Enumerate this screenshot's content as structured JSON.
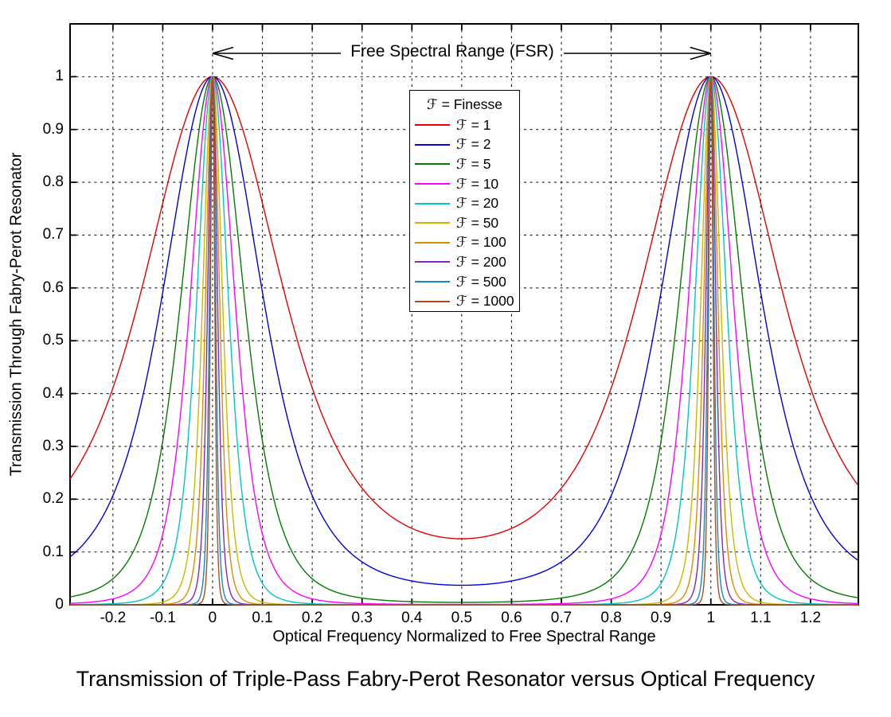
{
  "figure": {
    "title": "Transmission of Triple-Pass Fabry-Perot Resonator versus Optical Frequency"
  },
  "chart_data": {
    "type": "line",
    "title": "Transmission of Triple-Pass Fabry-Perot Resonator versus Optical Frequency",
    "xlabel": "Optical Frequency Normalized to Free Spectral Range",
    "ylabel": "Transmission Through Fabry-Perot Resonator",
    "xlim": [
      -0.286,
      1.296
    ],
    "ylim": [
      0,
      1.1
    ],
    "xticks": [
      -0.2,
      -0.1,
      0,
      0.1,
      0.2,
      0.3,
      0.4,
      0.5,
      0.6,
      0.7,
      0.8,
      0.9,
      1,
      1.1,
      1.2
    ],
    "xtick_labels": [
      "-0.2",
      "-0.1",
      "0",
      "0.1",
      "0.2",
      "0.3",
      "0.4",
      "0.5",
      "0.6",
      "0.7",
      "0.8",
      "0.9",
      "1",
      "1.1",
      "1.2"
    ],
    "yticks": [
      0,
      0.1,
      0.2,
      0.3,
      0.4,
      0.5,
      0.6,
      0.7,
      0.8,
      0.9,
      1
    ],
    "ytick_labels": [
      "0",
      "0.1",
      "0.2",
      "0.3",
      "0.4",
      "0.5",
      "0.6",
      "0.7",
      "0.8",
      "0.9",
      "1"
    ],
    "grid": "dotted black grid on both axes, MATLAB style box with inward ticks on all four sides",
    "model": "T(x) = (1 + F*sin^2(pi*x))^-3 ; all curves peak at T = 1 at x = 0 and x = 1",
    "peaks": {
      "x": [
        0,
        1
      ],
      "value": 1
    },
    "annotation": {
      "text": "Free Spectral Range (FSR)",
      "x_from": 0,
      "x_to": 1,
      "style": "double-headed open arrow between the two transmission peaks"
    },
    "legend_title": "ℱ = Finesse",
    "series": [
      {
        "label": "ℱ = 1",
        "finesse": 1,
        "color": "#e60000",
        "min_at_half_fsr": 0.125
      },
      {
        "label": "ℱ = 2",
        "finesse": 2,
        "color": "#0000dd",
        "min_at_half_fsr": 0.037
      },
      {
        "label": "ℱ = 5",
        "finesse": 5,
        "color": "#007d00",
        "min_at_half_fsr": 0.00463
      },
      {
        "label": "ℱ = 10",
        "finesse": 10,
        "color": "#ff00ff",
        "min_at_half_fsr": 0.000751
      },
      {
        "label": "ℱ = 20",
        "finesse": 20,
        "color": "#00c5c5",
        "min_at_half_fsr": 0.000108
      },
      {
        "label": "ℱ = 50",
        "finesse": 50,
        "color": "#c9b900",
        "min_at_half_fsr": 7.5e-06
      },
      {
        "label": "ℱ = 100",
        "finesse": 100,
        "color": "#e08a00",
        "min_at_half_fsr": 9.7e-07
      },
      {
        "label": "ℱ = 200",
        "finesse": 200,
        "color": "#8426bd",
        "min_at_half_fsr": 1.2e-07
      },
      {
        "label": "ℱ = 500",
        "finesse": 500,
        "color": "#1487cc",
        "min_at_half_fsr": 7.9e-09
      },
      {
        "label": "ℱ = 1000",
        "finesse": 1000,
        "color": "#a8501e",
        "min_at_half_fsr": 1e-09
      }
    ]
  }
}
